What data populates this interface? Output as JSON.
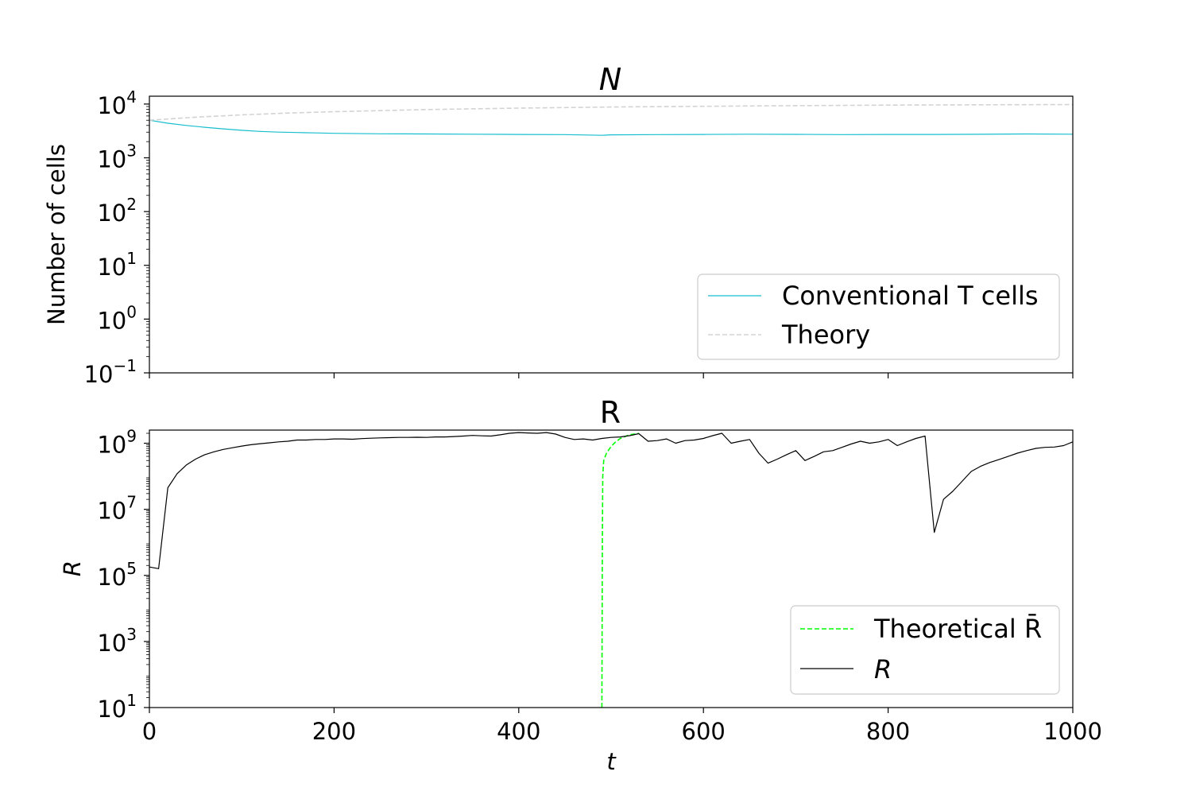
{
  "chart_data": [
    {
      "type": "line",
      "title": "N",
      "xlabel": "",
      "ylabel": "Number of cells",
      "yscale": "log",
      "xlim": [
        0,
        1000
      ],
      "ylim": [
        0.1,
        14000
      ],
      "yticks": [
        {
          "value": 0.1,
          "base": "10",
          "exp": "−1"
        },
        {
          "value": 1,
          "base": "10",
          "exp": "0"
        },
        {
          "value": 10,
          "base": "10",
          "exp": "1"
        },
        {
          "value": 100,
          "base": "10",
          "exp": "2"
        },
        {
          "value": 1000,
          "base": "10",
          "exp": "3"
        },
        {
          "value": 10000,
          "base": "10",
          "exp": "4"
        }
      ],
      "grid": false,
      "legend_position": "lower-right",
      "series": [
        {
          "name": "Conventional T cells",
          "color": "#17becf",
          "style": "solid",
          "x": [
            0,
            20,
            40,
            60,
            80,
            100,
            120,
            140,
            160,
            180,
            200,
            250,
            300,
            350,
            400,
            450,
            490,
            500,
            550,
            600,
            650,
            700,
            750,
            800,
            850,
            900,
            950,
            1000
          ],
          "y": [
            5000,
            4400,
            4000,
            3700,
            3450,
            3250,
            3100,
            3000,
            2950,
            2900,
            2850,
            2800,
            2780,
            2750,
            2720,
            2700,
            2620,
            2680,
            2700,
            2720,
            2750,
            2730,
            2700,
            2720,
            2720,
            2740,
            2780,
            2750
          ]
        },
        {
          "name": "Theory",
          "color": "#d3d3d3",
          "style": "dashed",
          "x": [
            0,
            50,
            100,
            150,
            200,
            300,
            400,
            500,
            600,
            700,
            800,
            900,
            1000
          ],
          "y": [
            5000,
            5700,
            6300,
            6800,
            7200,
            7900,
            8400,
            8800,
            9100,
            9350,
            9550,
            9700,
            9800
          ]
        }
      ]
    },
    {
      "type": "line",
      "title": "R",
      "xlabel": "t",
      "ylabel": "R",
      "yscale": "log",
      "xlim": [
        0,
        1000
      ],
      "ylim": [
        10,
        2500000000
      ],
      "xticks": [
        0,
        200,
        400,
        600,
        800,
        1000
      ],
      "yticks": [
        {
          "value": 10,
          "base": "10",
          "exp": "1"
        },
        {
          "value": 1000,
          "base": "10",
          "exp": "3"
        },
        {
          "value": 100000,
          "base": "10",
          "exp": "5"
        },
        {
          "value": 10000000,
          "base": "10",
          "exp": "7"
        },
        {
          "value": 1000000000,
          "base": "10",
          "exp": "9"
        }
      ],
      "grid": false,
      "legend_position": "lower-right",
      "series": [
        {
          "name": "Theoretical R̄",
          "color": "#00ff00",
          "style": "dashed",
          "x": [
            490,
            490.5,
            491,
            492,
            495,
            500,
            505,
            510,
            515,
            520,
            525,
            530
          ],
          "y": [
            10,
            1000000,
            100000000,
            300000000,
            500000000,
            800000000,
            1100000000,
            1400000000,
            1600000000,
            1800000000,
            1900000000,
            2000000000
          ]
        },
        {
          "name": "R",
          "color": "#000000",
          "style": "solid",
          "x": [
            0,
            10,
            20,
            30,
            40,
            50,
            60,
            70,
            80,
            90,
            100,
            110,
            120,
            130,
            140,
            150,
            160,
            170,
            180,
            190,
            200,
            210,
            220,
            230,
            240,
            250,
            260,
            270,
            280,
            290,
            300,
            310,
            320,
            330,
            340,
            350,
            360,
            370,
            380,
            390,
            400,
            410,
            420,
            430,
            440,
            450,
            460,
            470,
            480,
            490,
            500,
            510,
            520,
            530,
            540,
            550,
            560,
            570,
            580,
            590,
            600,
            610,
            620,
            630,
            640,
            650,
            660,
            670,
            680,
            690,
            700,
            710,
            720,
            730,
            740,
            750,
            760,
            770,
            780,
            790,
            800,
            810,
            820,
            830,
            840,
            850,
            860,
            870,
            880,
            890,
            900,
            910,
            920,
            930,
            940,
            950,
            960,
            970,
            980,
            990,
            1000
          ],
          "y": [
            180000,
            160000,
            45000000,
            120000000,
            220000000,
            330000000,
            450000000,
            550000000,
            650000000,
            730000000,
            820000000,
            900000000,
            970000000,
            1030000000,
            1100000000,
            1150000000,
            1250000000,
            1250000000,
            1300000000,
            1300000000,
            1350000000,
            1350000000,
            1320000000,
            1380000000,
            1420000000,
            1450000000,
            1480000000,
            1500000000,
            1500000000,
            1520000000,
            1500000000,
            1550000000,
            1550000000,
            1600000000,
            1650000000,
            1720000000,
            1680000000,
            1650000000,
            1800000000,
            2000000000,
            2100000000,
            2050000000,
            2000000000,
            2100000000,
            1900000000,
            1500000000,
            1300000000,
            1350000000,
            1250000000,
            1400000000,
            1500000000,
            1550000000,
            1700000000,
            1950000000,
            1150000000,
            1200000000,
            1350000000,
            1000000000,
            1200000000,
            1250000000,
            1400000000,
            1700000000,
            2000000000,
            1000000000,
            1150000000,
            1300000000,
            500000000,
            250000000,
            330000000,
            450000000,
            600000000,
            300000000,
            400000000,
            550000000,
            600000000,
            750000000,
            950000000,
            1150000000,
            1000000000,
            1100000000,
            1300000000,
            850000000,
            1100000000,
            1400000000,
            1650000000,
            2000000,
            20000000,
            35000000,
            70000000,
            140000000,
            200000000,
            260000000,
            320000000,
            400000000,
            500000000,
            600000000,
            700000000,
            750000000,
            770000000,
            850000000,
            1100000000
          ]
        }
      ]
    }
  ]
}
